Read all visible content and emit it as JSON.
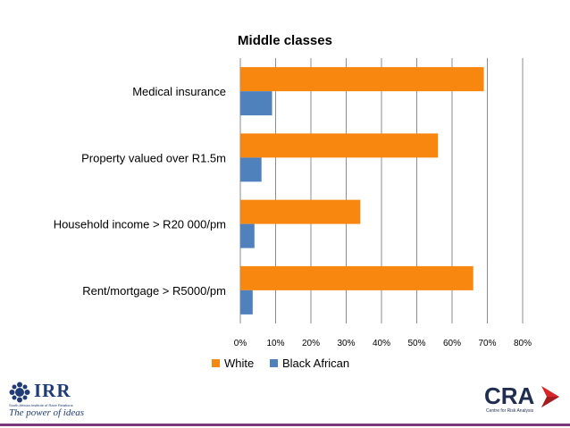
{
  "chart_data": {
    "type": "bar",
    "orientation": "horizontal",
    "title": "Middle classes",
    "categories": [
      "Medical insurance",
      "Property valued over R1.5m",
      "Household income > R20 000/pm",
      "Rent/mortgage > R5000/pm"
    ],
    "series": [
      {
        "name": "White",
        "color": "#f7870f",
        "values": [
          69,
          56,
          34,
          66
        ]
      },
      {
        "name": "Black African",
        "color": "#4f81bd",
        "values": [
          9,
          6,
          4,
          3.5
        ]
      }
    ],
    "xlim": [
      0,
      80
    ],
    "xticks": [
      "0%",
      "10%",
      "20%",
      "30%",
      "40%",
      "50%",
      "60%",
      "70%",
      "80%"
    ],
    "grid": true,
    "legend": "bottom"
  },
  "logos": {
    "irr": {
      "name": "IRR",
      "subtitle": "South African Institute of Race Relations",
      "tagline": "The power of ideas"
    },
    "cra": {
      "name": "CRA",
      "subtitle": "Centre for Risk Analysis"
    }
  }
}
